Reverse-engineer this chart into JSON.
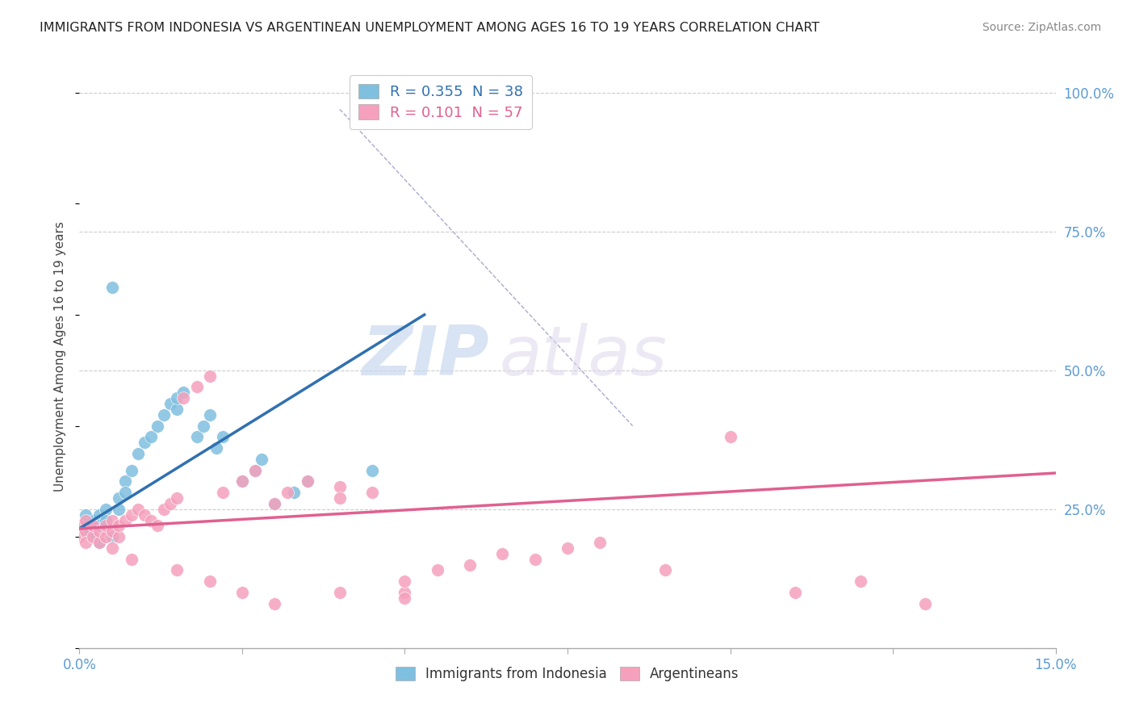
{
  "title": "IMMIGRANTS FROM INDONESIA VS ARGENTINEAN UNEMPLOYMENT AMONG AGES 16 TO 19 YEARS CORRELATION CHART",
  "source": "Source: ZipAtlas.com",
  "yaxis_label": "Unemployment Among Ages 16 to 19 years",
  "legend1_label": "Immigrants from Indonesia",
  "legend2_label": "Argentineans",
  "r1": 0.355,
  "n1": 38,
  "r2": 0.101,
  "n2": 57,
  "blue_color": "#7fbfdf",
  "pink_color": "#f5a0bc",
  "blue_line_color": "#3070b0",
  "pink_line_color": "#e06090",
  "watermark_zip": "ZIP",
  "watermark_atlas": "atlas",
  "xlim": [
    0.0,
    0.15
  ],
  "ylim": [
    0.0,
    1.05
  ],
  "blue_scatter_x": [
    0.001,
    0.001,
    0.001,
    0.002,
    0.002,
    0.003,
    0.003,
    0.003,
    0.004,
    0.004,
    0.005,
    0.006,
    0.006,
    0.007,
    0.007,
    0.008,
    0.009,
    0.01,
    0.011,
    0.012,
    0.013,
    0.014,
    0.015,
    0.015,
    0.016,
    0.018,
    0.019,
    0.02,
    0.021,
    0.022,
    0.025,
    0.027,
    0.028,
    0.03,
    0.033,
    0.035,
    0.045,
    0.005
  ],
  "blue_scatter_y": [
    0.22,
    0.24,
    0.21,
    0.23,
    0.2,
    0.19,
    0.24,
    0.22,
    0.25,
    0.23,
    0.65,
    0.27,
    0.25,
    0.3,
    0.28,
    0.32,
    0.35,
    0.37,
    0.38,
    0.4,
    0.42,
    0.44,
    0.43,
    0.45,
    0.46,
    0.38,
    0.4,
    0.42,
    0.36,
    0.38,
    0.3,
    0.32,
    0.34,
    0.26,
    0.28,
    0.3,
    0.32,
    0.2
  ],
  "pink_scatter_x": [
    0.0,
    0.0,
    0.001,
    0.001,
    0.001,
    0.002,
    0.002,
    0.003,
    0.003,
    0.004,
    0.004,
    0.005,
    0.005,
    0.006,
    0.006,
    0.007,
    0.008,
    0.009,
    0.01,
    0.011,
    0.012,
    0.013,
    0.014,
    0.015,
    0.016,
    0.018,
    0.02,
    0.022,
    0.025,
    0.027,
    0.03,
    0.032,
    0.035,
    0.04,
    0.04,
    0.045,
    0.05,
    0.05,
    0.055,
    0.06,
    0.065,
    0.07,
    0.075,
    0.08,
    0.09,
    0.1,
    0.11,
    0.12,
    0.13,
    0.005,
    0.008,
    0.015,
    0.02,
    0.025,
    0.03,
    0.04,
    0.05
  ],
  "pink_scatter_y": [
    0.22,
    0.2,
    0.21,
    0.19,
    0.23,
    0.2,
    0.22,
    0.19,
    0.21,
    0.2,
    0.22,
    0.21,
    0.23,
    0.2,
    0.22,
    0.23,
    0.24,
    0.25,
    0.24,
    0.23,
    0.22,
    0.25,
    0.26,
    0.27,
    0.45,
    0.47,
    0.49,
    0.28,
    0.3,
    0.32,
    0.26,
    0.28,
    0.3,
    0.29,
    0.27,
    0.28,
    0.1,
    0.12,
    0.14,
    0.15,
    0.17,
    0.16,
    0.18,
    0.19,
    0.14,
    0.38,
    0.1,
    0.12,
    0.08,
    0.18,
    0.16,
    0.14,
    0.12,
    0.1,
    0.08,
    0.1,
    0.09
  ],
  "blue_line_x": [
    0.0,
    0.053
  ],
  "blue_line_y": [
    0.215,
    0.6
  ],
  "pink_line_x": [
    0.0,
    0.15
  ],
  "pink_line_y": [
    0.215,
    0.315
  ],
  "diag_line_x": [
    0.04,
    0.085
  ],
  "diag_line_y": [
    0.97,
    0.4
  ]
}
